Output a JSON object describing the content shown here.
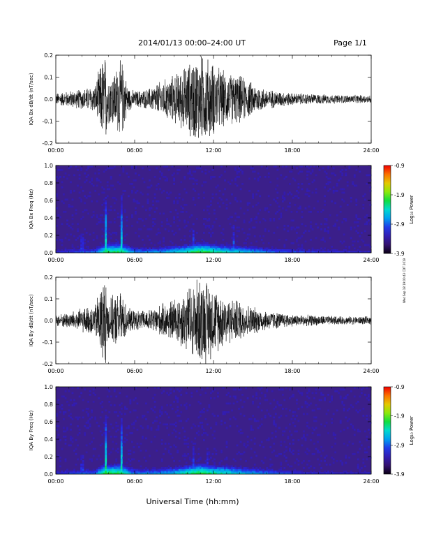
{
  "header": {
    "title": "2014/01/13  00:00–24:00 UT",
    "page": "Page 1/1"
  },
  "footer": {
    "xlabel": "Universal Time (hh:mm)"
  },
  "side_stamp": "Wed Sep 18 19:00:43 CDT 2019",
  "colorbar": {
    "label": "Log₁₀ Power",
    "ticks": [
      "-0.9",
      "-1.9",
      "-2.9",
      "-3.9"
    ],
    "range": [
      -3.9,
      -0.9
    ]
  },
  "colors": {
    "ink": "#000000",
    "spectrogram_background": "#3b1f8a"
  },
  "chart_data": [
    {
      "type": "line",
      "ylabel": "IQA Bx dB/dt (nT/sec)",
      "xlim": [
        0,
        24
      ],
      "ylim": [
        -0.2,
        0.2
      ],
      "xticks": [
        "00:00",
        "06:00",
        "12:00",
        "18:00",
        "24:00"
      ],
      "yticks": [
        "0.2",
        "0.1",
        "0.0",
        "-0.1",
        "-0.2"
      ],
      "envelope": {
        "x": [
          0,
          1,
          2,
          3,
          3.5,
          3.8,
          4,
          4.5,
          5,
          5.5,
          6,
          7,
          8,
          9,
          10,
          10.5,
          11,
          11.5,
          12,
          13,
          14,
          15,
          16,
          17,
          18,
          20,
          22,
          24
        ],
        "amplitude": [
          0.03,
          0.04,
          0.05,
          0.07,
          0.2,
          0.22,
          0.12,
          0.15,
          0.2,
          0.06,
          0.04,
          0.05,
          0.09,
          0.12,
          0.17,
          0.21,
          0.22,
          0.21,
          0.18,
          0.13,
          0.12,
          0.08,
          0.05,
          0.04,
          0.03,
          0.025,
          0.02,
          0.02
        ]
      }
    },
    {
      "type": "heatmap",
      "ylabel": "IQA Bx Freq (Hz)",
      "xlim": [
        0,
        24
      ],
      "ylim": [
        0,
        1
      ],
      "xticks": [
        "00:00",
        "06:00",
        "12:00",
        "18:00",
        "24:00"
      ],
      "yticks": [
        "1.0",
        "0.8",
        "0.6",
        "0.4",
        "0.2",
        "0.0"
      ],
      "zlim": [
        -3.9,
        -0.9
      ],
      "low_frequency_band": {
        "x": [
          0,
          3,
          3.8,
          5,
          6,
          8,
          9,
          10,
          11,
          12,
          13,
          14,
          16,
          18,
          20,
          24
        ],
        "power": [
          -3.0,
          -2.8,
          -2.0,
          -2.0,
          -2.7,
          -2.6,
          -2.4,
          -2.2,
          -1.9,
          -2.1,
          -2.3,
          -2.4,
          -2.7,
          -2.9,
          -3.0,
          -3.1
        ]
      },
      "bursts": [
        {
          "x": 2.0,
          "power": -3.0
        },
        {
          "x": 3.8,
          "power": -2.2
        },
        {
          "x": 5.0,
          "power": -2.2
        },
        {
          "x": 10.5,
          "power": -2.8
        },
        {
          "x": 13.5,
          "power": -2.8
        }
      ]
    },
    {
      "type": "line",
      "ylabel": "IQA By dB/dt (nT/sec)",
      "xlim": [
        0,
        24
      ],
      "ylim": [
        -0.2,
        0.2
      ],
      "xticks": [
        "00:00",
        "06:00",
        "12:00",
        "18:00",
        "24:00"
      ],
      "yticks": [
        "0.2",
        "0.1",
        "0.0",
        "-0.1",
        "-0.2"
      ],
      "envelope": {
        "x": [
          0,
          1,
          2,
          3,
          3.5,
          3.8,
          4,
          4.5,
          5,
          5.5,
          6,
          7,
          8,
          9,
          10,
          10.5,
          11,
          11.5,
          12,
          13,
          14,
          15,
          16,
          17,
          18,
          20,
          22,
          24
        ],
        "amplitude": [
          0.03,
          0.04,
          0.06,
          0.08,
          0.21,
          0.22,
          0.1,
          0.13,
          0.14,
          0.06,
          0.05,
          0.05,
          0.08,
          0.11,
          0.16,
          0.2,
          0.22,
          0.21,
          0.17,
          0.12,
          0.1,
          0.07,
          0.05,
          0.04,
          0.03,
          0.025,
          0.02,
          0.02
        ]
      }
    },
    {
      "type": "heatmap",
      "ylabel": "IQA By Freq (Hz)",
      "xlim": [
        0,
        24
      ],
      "ylim": [
        0,
        1
      ],
      "xticks": [
        "00:00",
        "06:00",
        "12:00",
        "18:00",
        "24:00"
      ],
      "yticks": [
        "1.0",
        "0.8",
        "0.6",
        "0.4",
        "0.2",
        "0.0"
      ],
      "zlim": [
        -3.9,
        -0.9
      ],
      "low_frequency_band": {
        "x": [
          0,
          3,
          3.8,
          5,
          6,
          8,
          9,
          10,
          11,
          12,
          13,
          14,
          16,
          18,
          20,
          24
        ],
        "power": [
          -3.0,
          -2.7,
          -1.9,
          -2.0,
          -2.7,
          -2.6,
          -2.4,
          -2.1,
          -1.9,
          -2.1,
          -2.2,
          -2.4,
          -2.7,
          -2.9,
          -3.0,
          -3.1
        ]
      },
      "bursts": [
        {
          "x": 2.0,
          "power": -3.0
        },
        {
          "x": 3.8,
          "power": -2.1
        },
        {
          "x": 5.0,
          "power": -2.2
        },
        {
          "x": 10.5,
          "power": -2.8
        },
        {
          "x": 11.5,
          "power": -2.9
        }
      ]
    }
  ]
}
